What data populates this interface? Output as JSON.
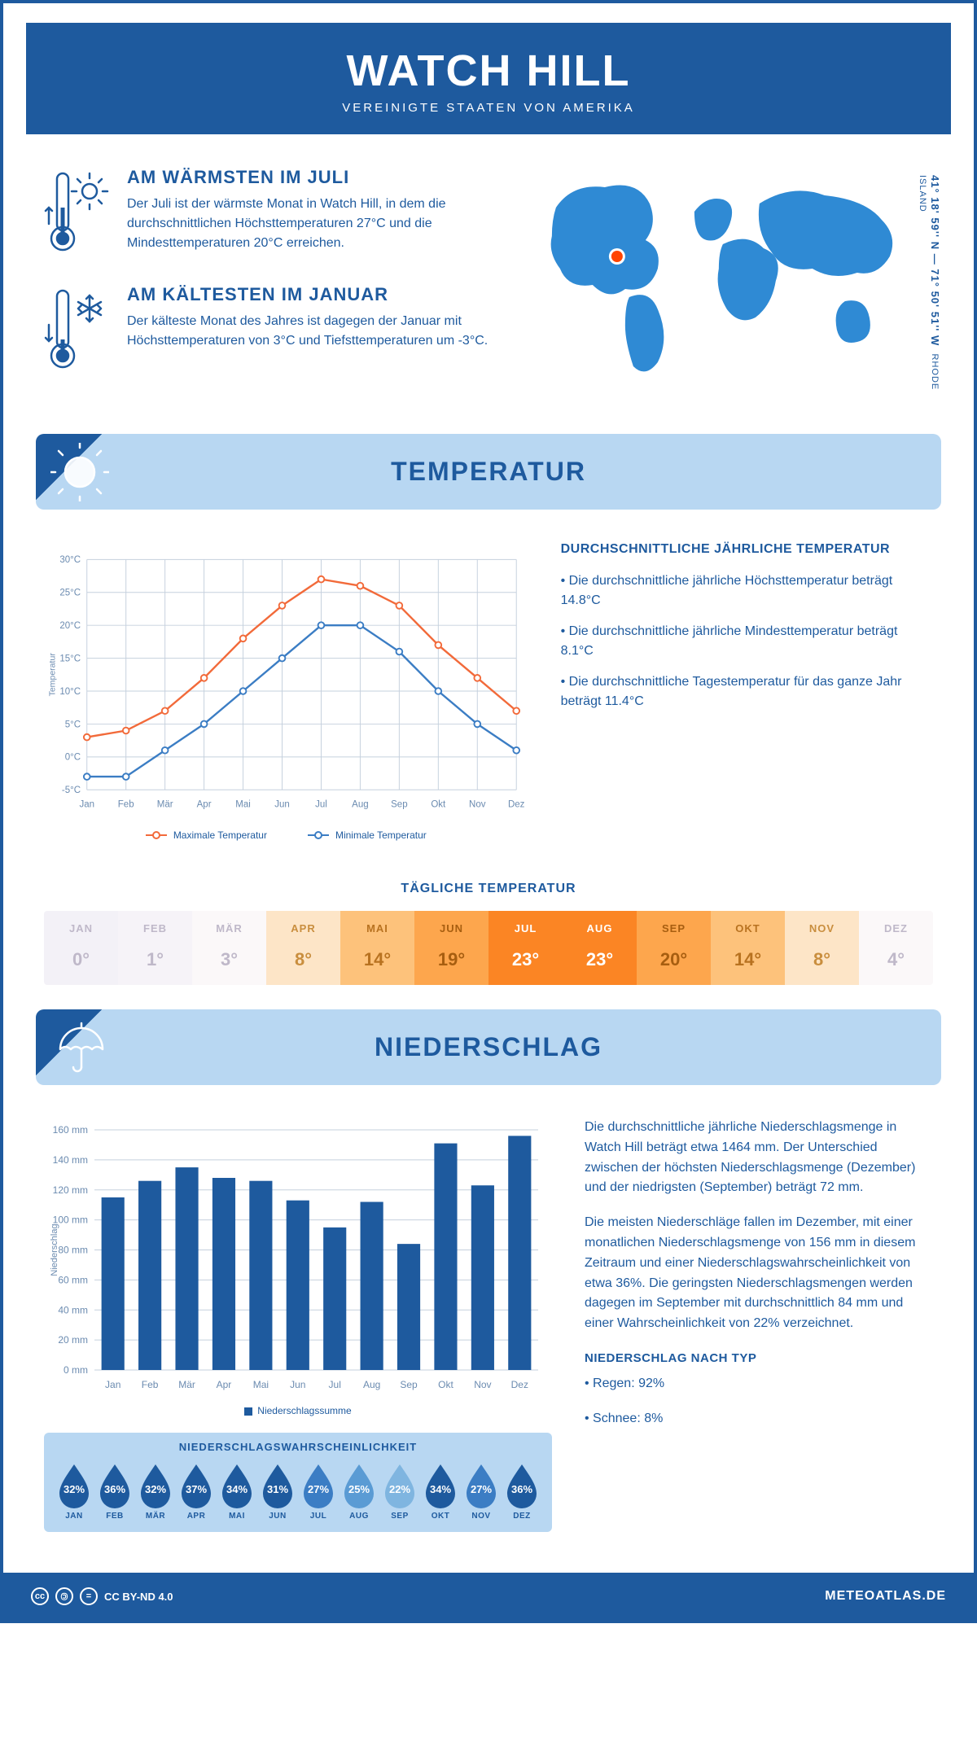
{
  "header": {
    "title": "WATCH HILL",
    "subtitle": "VEREINIGTE STAATEN VON AMERIKA"
  },
  "location": {
    "coords": "41° 18' 59'' N — 71° 50' 51'' W",
    "region": "RHODE ISLAND",
    "marker_color": "#ff4400",
    "map_color": "#2f8ad4"
  },
  "facts": {
    "warm": {
      "title": "AM WÄRMSTEN IM JULI",
      "body": "Der Juli ist der wärmste Monat in Watch Hill, in dem die durchschnittlichen Höchsttemperaturen 27°C und die Mindesttemperaturen 20°C erreichen."
    },
    "cold": {
      "title": "AM KÄLTESTEN IM JANUAR",
      "body": "Der kälteste Monat des Jahres ist dagegen der Januar mit Höchsttemperaturen von 3°C und Tiefsttemperaturen um -3°C."
    }
  },
  "temperature": {
    "banner": "TEMPERATUR",
    "text_title": "DURCHSCHNITTLICHE JÄHRLICHE TEMPERATUR",
    "bullets": [
      "• Die durchschnittliche jährliche Höchsttemperatur beträgt 14.8°C",
      "• Die durchschnittliche jährliche Mindesttemperatur beträgt 8.1°C",
      "• Die durchschnittliche Tagestemperatur für das ganze Jahr beträgt 11.4°C"
    ],
    "chart": {
      "type": "line",
      "months": [
        "Jan",
        "Feb",
        "Mär",
        "Apr",
        "Mai",
        "Jun",
        "Jul",
        "Aug",
        "Sep",
        "Okt",
        "Nov",
        "Dez"
      ],
      "max_series": [
        3,
        4,
        7,
        12,
        18,
        23,
        27,
        26,
        23,
        17,
        12,
        7
      ],
      "min_series": [
        -3,
        -3,
        1,
        5,
        10,
        15,
        20,
        20,
        16,
        10,
        5,
        1
      ],
      "max_color": "#f26a3a",
      "min_color": "#3b7dc4",
      "grid_color": "#c5d0dd",
      "ylim": [
        -5,
        30
      ],
      "ytick_step": 5,
      "ylabel": "Temperatur",
      "legend_max": "Maximale Temperatur",
      "legend_min": "Minimale Temperatur"
    },
    "daily": {
      "title": "TÄGLICHE TEMPERATUR",
      "months": [
        "JAN",
        "FEB",
        "MÄR",
        "APR",
        "MAI",
        "JUN",
        "JUL",
        "AUG",
        "SEP",
        "OKT",
        "NOV",
        "DEZ"
      ],
      "values": [
        "0°",
        "1°",
        "3°",
        "8°",
        "14°",
        "19°",
        "23°",
        "23°",
        "20°",
        "14°",
        "8°",
        "4°"
      ],
      "bg_colors": [
        "#f3f1f7",
        "#f6f3f8",
        "#fbf8f9",
        "#fde5c7",
        "#fdc27b",
        "#fda64d",
        "#fb8524",
        "#fb8524",
        "#fda64d",
        "#fdc27b",
        "#fde5c7",
        "#fbf8f9"
      ],
      "text_colors": [
        "#bfb8c9",
        "#bfb8c9",
        "#bfb8c9",
        "#c98e3e",
        "#b87220",
        "#a75e10",
        "#ffffff",
        "#ffffff",
        "#a75e10",
        "#b87220",
        "#c98e3e",
        "#bfb8c9"
      ]
    }
  },
  "precipitation": {
    "banner": "NIEDERSCHLAG",
    "chart": {
      "type": "bar",
      "months": [
        "Jan",
        "Feb",
        "Mär",
        "Apr",
        "Mai",
        "Jun",
        "Jul",
        "Aug",
        "Sep",
        "Okt",
        "Nov",
        "Dez"
      ],
      "values": [
        115,
        126,
        135,
        128,
        126,
        113,
        95,
        112,
        84,
        151,
        123,
        156
      ],
      "bar_color": "#1e5a9e",
      "grid_color": "#c5d0dd",
      "ylim": [
        0,
        160
      ],
      "ytick_step": 20,
      "ylabel": "Niederschlag",
      "legend": "Niederschlagssumme"
    },
    "text": {
      "p1": "Die durchschnittliche jährliche Niederschlagsmenge in Watch Hill beträgt etwa 1464 mm. Der Unterschied zwischen der höchsten Niederschlagsmenge (Dezember) und der niedrigsten (September) beträgt 72 mm.",
      "p2": "Die meisten Niederschläge fallen im Dezember, mit einer monatlichen Niederschlagsmenge von 156 mm in diesem Zeitraum und einer Niederschlagswahrscheinlichkeit von etwa 36%. Die geringsten Niederschlagsmengen werden dagegen im September mit durchschnittlich 84 mm und einer Wahrscheinlichkeit von 22% verzeichnet.",
      "type_title": "NIEDERSCHLAG NACH TYP",
      "type_rain": "• Regen: 92%",
      "type_snow": "• Schnee: 8%"
    },
    "probability": {
      "title": "NIEDERSCHLAGSWAHRSCHEINLICHKEIT",
      "months": [
        "JAN",
        "FEB",
        "MÄR",
        "APR",
        "MAI",
        "JUN",
        "JUL",
        "AUG",
        "SEP",
        "OKT",
        "NOV",
        "DEZ"
      ],
      "values": [
        "32%",
        "36%",
        "32%",
        "37%",
        "34%",
        "31%",
        "27%",
        "25%",
        "22%",
        "34%",
        "27%",
        "36%"
      ],
      "colors": [
        "#1e5a9e",
        "#1e5a9e",
        "#1e5a9e",
        "#1e5a9e",
        "#1e5a9e",
        "#1e5a9e",
        "#3b7dc4",
        "#5a9bd4",
        "#7fb5e0",
        "#1e5a9e",
        "#3b7dc4",
        "#1e5a9e"
      ]
    }
  },
  "footer": {
    "license": "CC BY-ND 4.0",
    "site": "METEOATLAS.DE"
  },
  "palette": {
    "primary": "#1e5a9e",
    "light_blue": "#b8d7f2",
    "accent": "#3b7dc4"
  }
}
